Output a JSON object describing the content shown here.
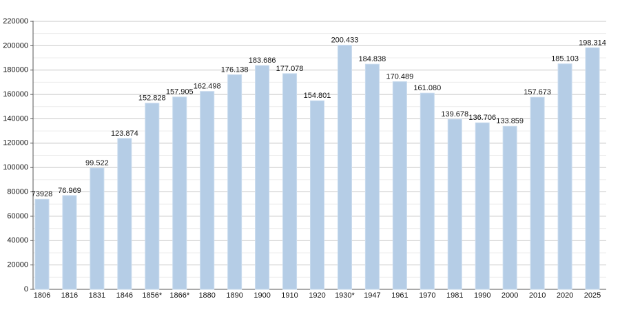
{
  "chart_data": {
    "type": "bar",
    "categories": [
      "1806",
      "1816",
      "1831",
      "1846",
      "1856*",
      "1866*",
      "1880",
      "1890",
      "1900",
      "1910",
      "1920",
      "1930*",
      "1947",
      "1961",
      "1970",
      "1981",
      "1990",
      "2000",
      "2010",
      "2020",
      "2025"
    ],
    "values": [
      73928,
      76969,
      99522,
      123874,
      152828,
      157905,
      162498,
      176138,
      183686,
      177078,
      154801,
      200433,
      184838,
      170489,
      161080,
      139678,
      136706,
      133859,
      157673,
      185103,
      198314
    ],
    "value_labels": [
      "73928",
      "76.969",
      "99.522",
      "123.874",
      "152.828",
      "157.905",
      "162.498",
      "176.138",
      "183.686",
      "177.078",
      "154.801",
      "200.433",
      "184.838",
      "170.489",
      "161.080",
      "139.678",
      "136.706",
      "133.859",
      "157.673",
      "185.103",
      "198.314"
    ],
    "color": "#b5cde6",
    "ylim": [
      0,
      220000
    ],
    "yticks": [
      0,
      20000,
      40000,
      60000,
      80000,
      100000,
      120000,
      140000,
      160000,
      180000,
      200000,
      220000
    ],
    "grid": true
  }
}
